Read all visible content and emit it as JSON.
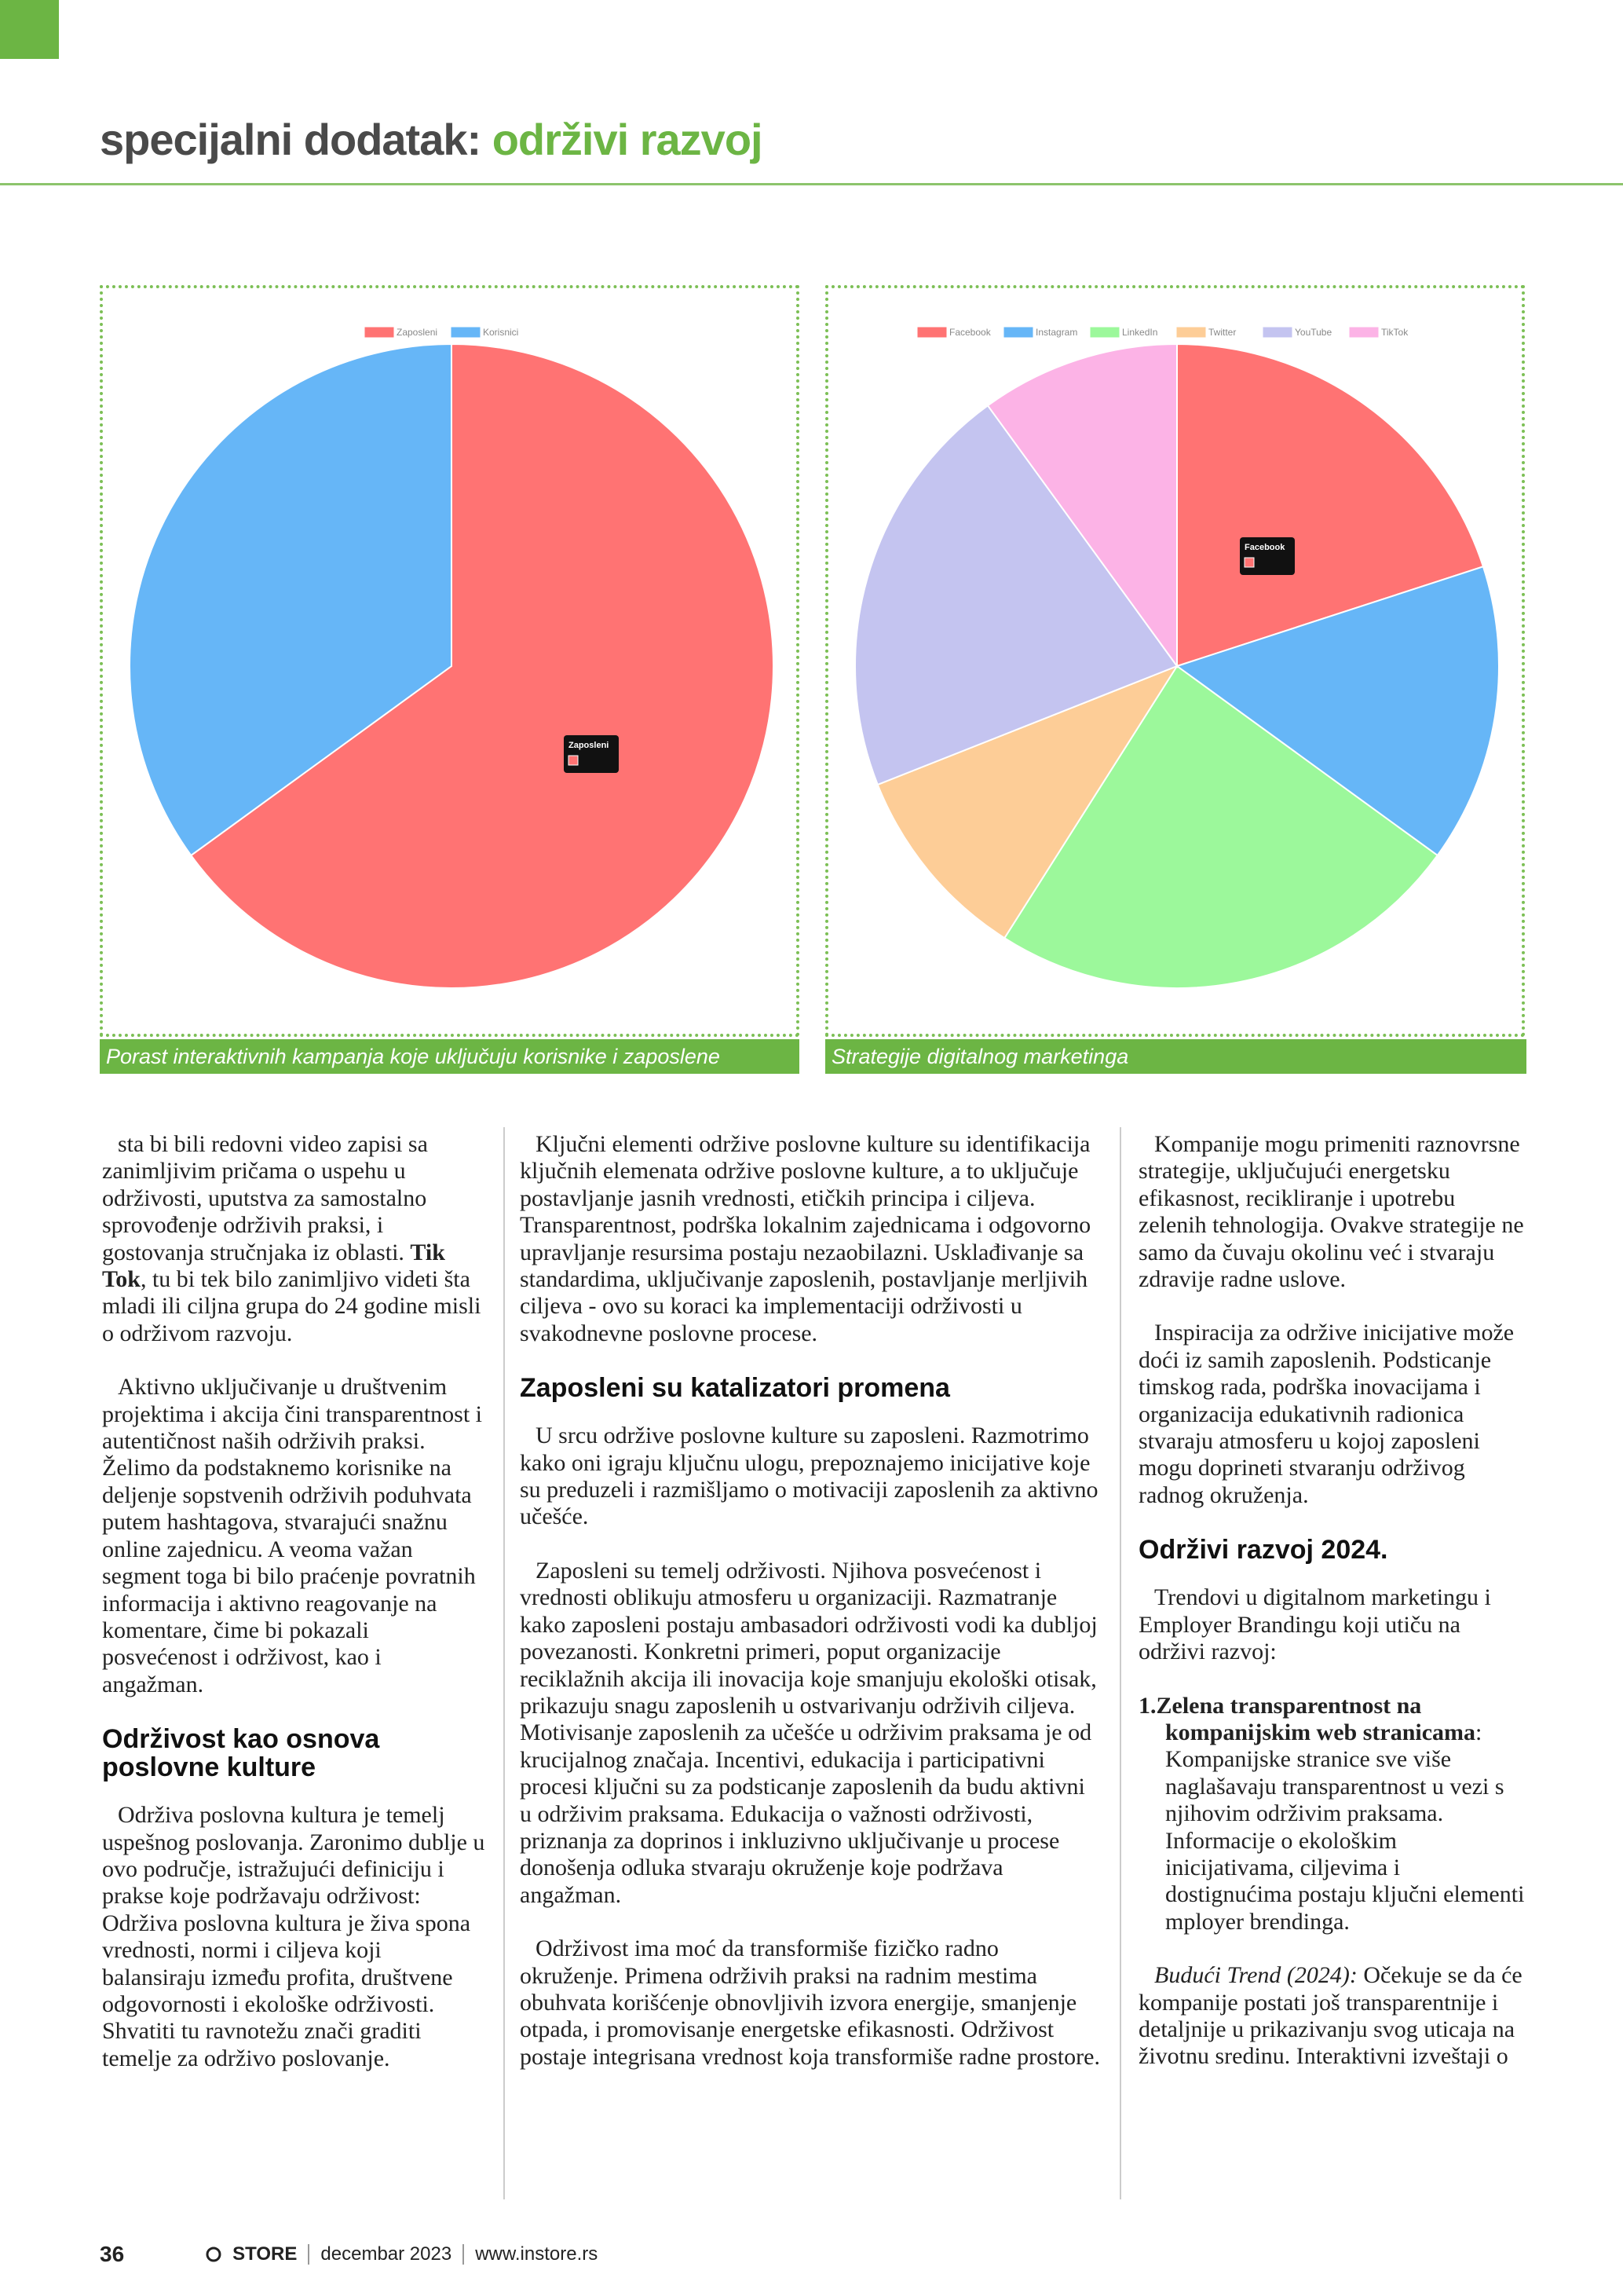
{
  "header": {
    "section": "specijalni dodatak:",
    "topic": "održivi razvoj"
  },
  "chart_data": [
    {
      "type": "pie",
      "caption": "Porast interaktivnih kampanja koje uključuju korisnike i zaposlene",
      "categories": [
        "Zaposleni",
        "Korisnici"
      ],
      "values": [
        65,
        35
      ],
      "colors": [
        "#ff7373",
        "#66b6f7"
      ],
      "legend": "top"
    },
    {
      "type": "pie",
      "caption": "Strategije digitalnog marketinga",
      "categories": [
        "Facebook",
        "Instagram",
        "LinkedIn",
        "Twitter",
        "YouTube",
        "TikTok"
      ],
      "values": [
        20,
        15,
        24,
        10,
        21,
        10
      ],
      "colors": [
        "#ff7373",
        "#66b6f7",
        "#9cf89b",
        "#fdcd97",
        "#c4c4f0",
        "#fcb3e6"
      ],
      "legend": "top"
    }
  ],
  "article": {
    "columns": [
      [
        {
          "kind": "p",
          "runs": [
            {
              "text": "sta bi bili redovni video zapisi sa zanimljivim pričama o uspehu u održivosti, uputstva za samostalno sprovođenje održivih praksi, i gostovanja stručnjaka iz oblasti. "
            },
            {
              "text": "Tik Tok",
              "style": "bold"
            },
            {
              "text": ", tu bi tek bilo zanimljivo videti šta mladi ili ciljna grupa do 24 godine misli o održivom razvoju."
            }
          ]
        },
        {
          "kind": "p",
          "runs": [
            {
              "text": "Aktivno uključivanje u društvenim projektima i akcija čini transparentnost i autentičnost naših održivih praksi. Želimo da podstaknemo korisnike na deljenje sopstvenih održivih poduhvata putem hashtagova, stvarajući snažnu online zajednicu. A veoma važan segment toga bi bilo praćenje povratnih informacija i aktivno reagovanje na komentare, čime bi pokazali posvećenost i održivost, kao i angažman."
            }
          ]
        },
        {
          "kind": "h",
          "text": "Održivost kao osnova poslovne kulture"
        },
        {
          "kind": "p",
          "runs": [
            {
              "text": "Održiva poslovna kultura je temelj uspešnog poslovanja. Zaronimo dublje u ovo područje, istražujući definiciju i prakse koje podržavaju održivost: Održiva poslovna kultura je živa spona vrednosti, normi i ciljeva koji balansiraju između profita, društvene odgovornosti i ekološke održivosti. Shvatiti tu ravnotežu znači graditi temelje za održivo poslovanje."
            }
          ]
        }
      ],
      [
        {
          "kind": "p",
          "runs": [
            {
              "text": "Ključni elementi održive poslovne kulture su identifikacija ključnih elemenata održive poslovne kulture, a to uključuje postavljanje jasnih vrednosti, etičkih principa i ciljeva. Transparentnost, podrška lokalnim zajednicama i odgovorno upravljanje resursima postaju nezaobilazni. Usklađivanje sa standardima, uključivanje zaposlenih, postavljanje merljivih ciljeva - ovo su koraci ka implementaciji održivosti u svakodnevne poslovne procese."
            }
          ]
        },
        {
          "kind": "h",
          "text": "Zaposleni su katalizatori promena"
        },
        {
          "kind": "p",
          "runs": [
            {
              "text": "U srcu održive poslovne kulture su zaposleni. Razmotrimo kako oni igraju ključnu ulogu, prepoznajemo inicijative koje su preduzeli i razmišljamo o motivaciji zaposlenih za aktivno učešće."
            }
          ]
        },
        {
          "kind": "p",
          "runs": [
            {
              "text": "Zaposleni su temelj održivosti. Njihova posvećenost i vrednosti oblikuju atmosferu u organizaciji. Razmatranje kako zaposleni postaju ambasadori održivosti vodi ka dubljoj povezanosti. Konkretni primeri, poput organizacije reciklažnih akcija ili inovacija koje smanjuju ekološki otisak, prikazuju snagu zaposlenih u ostvarivanju održivih ciljeva. Motivisanje zaposlenih za učešće u održivim praksama je od krucijalnog značaja. Incentivi, edukacija i participativni procesi ključni su za podsticanje zaposlenih da budu aktivni u održivim praksama. Edukacija o važnosti održivosti, priznanja za doprinos i inkluzivno uključivanje u procese donošenja odluka stvaraju okruženje koje podržava angažman."
            }
          ]
        },
        {
          "kind": "p",
          "runs": [
            {
              "text": "Održivost ima moć da transformiše fizičko radno okruženje. Primena održivih praksi na radnim mestima obuhvata korišćenje obnovljivih izvora energije, smanjenje otpada, i promovisanje energetske efikasnosti. Održivost postaje integrisana vrednost koja transformiše radne prostore."
            }
          ]
        }
      ],
      [
        {
          "kind": "p",
          "runs": [
            {
              "text": "Kompanije mogu primeniti raznovrsne strategije, uključujući energetsku efikasnost, recikliranje i upotrebu zelenih tehnologija. Ovakve strategije ne samo da čuvaju okolinu već i stvaraju zdravije radne uslove."
            }
          ]
        },
        {
          "kind": "p",
          "runs": [
            {
              "text": "Inspiracija za održive inicijative može doći iz samih zaposlenih. Podsticanje timskog rada, podrška inovacijama i organizacija edukativnih radionica stvaraju atmosferu u kojoj zaposleni mogu doprineti stvaranju održivog radnog okruženja."
            }
          ]
        },
        {
          "kind": "h",
          "text": "Održivi razvoj 2024."
        },
        {
          "kind": "p",
          "runs": [
            {
              "text": "Trendovi u digitalnom marketingu i Employer Brandingu koji utiču na održivi razvoj:"
            }
          ]
        },
        {
          "kind": "li",
          "marker": "1.",
          "runs": [
            {
              "text": "Zelena transparentnost na kompanijskim web stranicama",
              "style": "bold"
            },
            {
              "text": ": Kompanijske stranice sve više naglašavaju transparentnost u vezi s njihovim održivim praksama. Informacije o ekološkim inicijativama, ciljevima i dostignućima postaju ključni elementi mployer brendinga."
            }
          ]
        },
        {
          "kind": "p",
          "runs": [
            {
              "text": "Budući Trend (2024):",
              "style": "italic"
            },
            {
              "text": " Očekuje se da će kompanije postati još transparentnije i detaljnije u prikazivanju svog uticaja na životnu sredinu. Interaktivni izveštaji o"
            }
          ]
        }
      ]
    ]
  },
  "footer": {
    "page": "36",
    "brand": "STORE",
    "issue": "decembar 2023",
    "url": "www.instore.rs"
  }
}
